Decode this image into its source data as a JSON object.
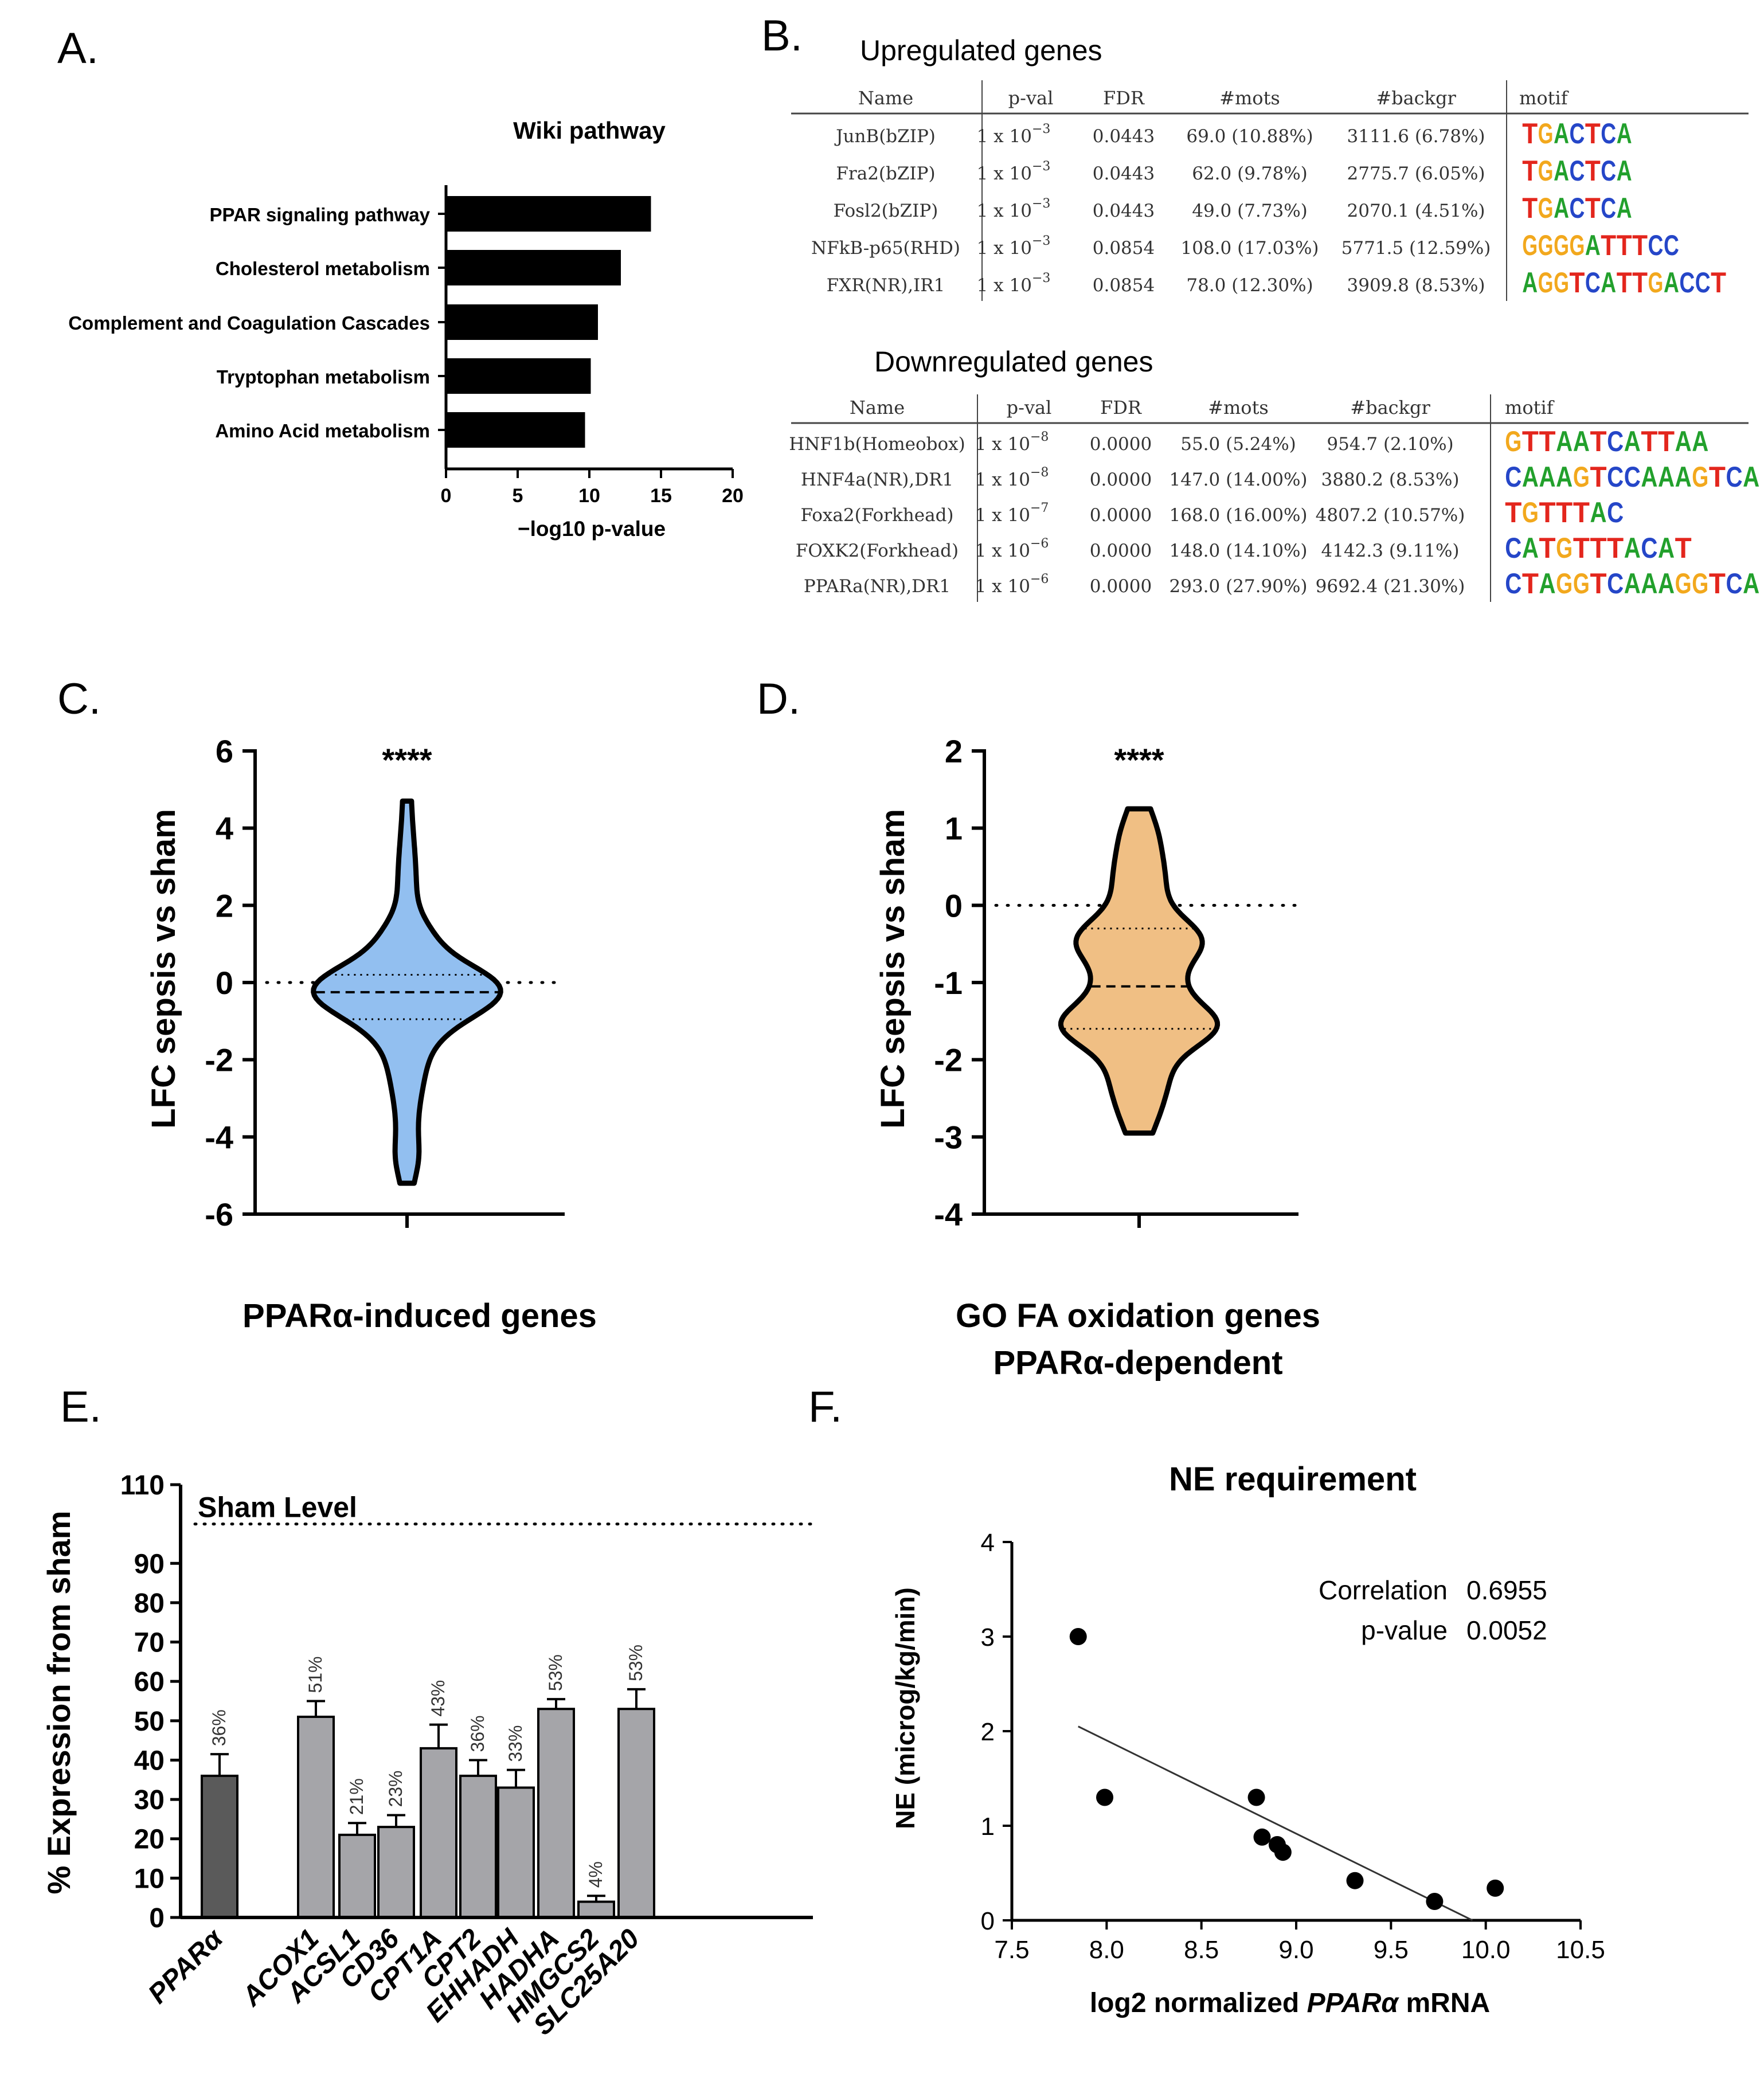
{
  "panel_labels": {
    "a": "A.",
    "b": "B.",
    "c": "C.",
    "d": "D.",
    "e": "E.",
    "f": "F."
  },
  "panel_a": {
    "chart_data": {
      "type": "bar",
      "orientation": "horizontal",
      "title": "Wiki pathway",
      "categories": [
        "PPAR signaling pathway",
        "Cholesterol metabolism",
        "Complement and Coagulation Cascades",
        "Tryptophan metabolism",
        "Amino Acid metabolism"
      ],
      "values": [
        14.3,
        12.2,
        10.6,
        10.1,
        9.7
      ],
      "xlabel": "−log10 p-value",
      "xlim": [
        0,
        20
      ],
      "xticks": [
        "0",
        "5",
        "10",
        "15",
        "20"
      ],
      "bar_color": "#000000"
    }
  },
  "panel_b": {
    "headers": [
      "Name",
      "p-val",
      "FDR",
      "#mots",
      "#backgr",
      "motif"
    ],
    "up": {
      "title": "Upregulated genes",
      "rows": [
        {
          "name": "JunB(bZIP)",
          "pval_base": "1 x 10",
          "pval_exp": "−3",
          "fdr": "0.0443",
          "mots": "69.0 (10.88%)",
          "backgr": "3111.6 (6.78%)",
          "motif": "TGACTCA"
        },
        {
          "name": "Fra2(bZIP)",
          "pval_base": "1 x 10",
          "pval_exp": "−3",
          "fdr": "0.0443",
          "mots": "62.0 (9.78%)",
          "backgr": "2775.7 (6.05%)",
          "motif": "TGACTCA"
        },
        {
          "name": "Fosl2(bZIP)",
          "pval_base": "1 x 10",
          "pval_exp": "−3",
          "fdr": "0.0443",
          "mots": "49.0 (7.73%)",
          "backgr": "2070.1 (4.51%)",
          "motif": "TGACTCA"
        },
        {
          "name": "NFkB-p65(RHD)",
          "pval_base": "1 x 10",
          "pval_exp": "−3",
          "fdr": "0.0854",
          "mots": "108.0 (17.03%)",
          "backgr": "5771.5 (12.59%)",
          "motif": "GGGGATTTCC"
        },
        {
          "name": "FXR(NR),IR1",
          "pval_base": "1 x 10",
          "pval_exp": "−3",
          "fdr": "0.0854",
          "mots": "78.0 (12.30%)",
          "backgr": "3909.8 (8.53%)",
          "motif": "AGGTCATTGACCT"
        }
      ]
    },
    "down": {
      "title": "Downregulated genes",
      "rows": [
        {
          "name": "HNF1b(Homeobox)",
          "pval_base": "1 x 10",
          "pval_exp": "−8",
          "fdr": "0.0000",
          "mots": "55.0 (5.24%)",
          "backgr": "954.7 (2.10%)",
          "motif": "GTTAATCATTAA"
        },
        {
          "name": "HNF4a(NR),DR1",
          "pval_base": "1 x 10",
          "pval_exp": "−8",
          "fdr": "0.0000",
          "mots": "147.0 (14.00%)",
          "backgr": "3880.2 (8.53%)",
          "motif": "CAAAGTCCAAAGTCA"
        },
        {
          "name": "Foxa2(Forkhead)",
          "pval_base": "1 x 10",
          "pval_exp": "−7",
          "fdr": "0.0000",
          "mots": "168.0 (16.00%)",
          "backgr": "4807.2 (10.57%)",
          "motif": "TGTTTAC"
        },
        {
          "name": "FOXK2(Forkhead)",
          "pval_base": "1 x 10",
          "pval_exp": "−6",
          "fdr": "0.0000",
          "mots": "148.0 (14.10%)",
          "backgr": "4142.3 (9.11%)",
          "motif": "CATGTTTACAT"
        },
        {
          "name": "PPARa(NR),DR1",
          "pval_base": "1 x 10",
          "pval_exp": "−6",
          "fdr": "0.0000",
          "mots": "293.0 (27.90%)",
          "backgr": "9692.4 (21.30%)",
          "motif": "CTAGGTCAAAGGTCA"
        }
      ]
    }
  },
  "panel_c": {
    "chart_data": {
      "type": "violin",
      "ylabel": "LFC sepsis vs sham",
      "xlabel": "PPARα-induced genes",
      "ylim": [
        -6,
        6
      ],
      "yticks": [
        "6",
        "4",
        "2",
        "0",
        "-2",
        "-4",
        "-6"
      ],
      "median": -0.25,
      "quartiles": [
        -0.95,
        0.2
      ],
      "range": [
        -5.2,
        4.7
      ],
      "significance": "****",
      "reference_line": 0,
      "fill": "#92bff0"
    }
  },
  "panel_d": {
    "chart_data": {
      "type": "violin",
      "ylabel": "LFC sepsis vs sham",
      "xlabel_lines": [
        "GO FA oxidation genes",
        "PPARα-dependent"
      ],
      "ylim": [
        -4,
        2
      ],
      "yticks": [
        "2",
        "1",
        "0",
        "-1",
        "-2",
        "-3",
        "-4"
      ],
      "median": -1.05,
      "quartiles": [
        -1.6,
        -0.3
      ],
      "range": [
        -2.95,
        1.25
      ],
      "significance": "****",
      "reference_line": 0,
      "fill": "#f0bf84"
    }
  },
  "panel_e": {
    "chart_data": {
      "type": "bar",
      "ylabel": "% Expression from sham",
      "ylim": [
        0,
        110
      ],
      "yticks": [
        "0",
        "10",
        "20",
        "30",
        "40",
        "50",
        "60",
        "70",
        "80",
        "90",
        "110"
      ],
      "reference_label": "Sham Level",
      "reference_value": 100,
      "categories": [
        "PPARα",
        "ACOX1",
        "ACSL1",
        "CD36",
        "CPT1A",
        "CPT2",
        "EHHADH",
        "HADHA",
        "HMGCS2",
        "SLC25A20"
      ],
      "values": [
        36,
        51,
        21,
        23,
        43,
        36,
        33,
        53,
        4,
        53
      ],
      "errors": [
        5.5,
        4,
        3,
        3,
        6,
        4,
        4.5,
        2.5,
        1.5,
        5
      ],
      "labels": [
        "36%",
        "51%",
        "21%",
        "23%",
        "43%",
        "36%",
        "33%",
        "53%",
        "4%",
        "53%"
      ],
      "colors": [
        "#5a5a5a",
        "#a5a5a9",
        "#a5a5a9",
        "#a5a5a9",
        "#a5a5a9",
        "#a5a5a9",
        "#a5a5a9",
        "#a5a5a9",
        "#a5a5a9",
        "#a5a5a9"
      ]
    }
  },
  "panel_f": {
    "chart_data": {
      "type": "scatter",
      "title": "NE requirement",
      "ylabel": "NE (microg/kg/min)",
      "xlabel_prefix": "log2 normalized ",
      "xlabel_italic": "PPARα",
      "xlabel_suffix": " mRNA",
      "xlim": [
        7.5,
        10.5
      ],
      "ylim": [
        0,
        4
      ],
      "xticks": [
        "7.5",
        "8.0",
        "8.5",
        "9.0",
        "9.5",
        "10.0",
        "10.5"
      ],
      "yticks": [
        "0",
        "1",
        "2",
        "3",
        "4"
      ],
      "x": [
        7.85,
        7.99,
        8.79,
        8.82,
        8.9,
        8.93,
        9.31,
        9.73,
        10.05
      ],
      "y": [
        3.0,
        1.3,
        1.3,
        0.88,
        0.8,
        0.72,
        0.42,
        0.2,
        0.34
      ],
      "fit_line": {
        "x": [
          7.85,
          9.93
        ],
        "y": [
          2.05,
          0.0
        ]
      },
      "stats": [
        {
          "label": "Correlation",
          "value": "0.6955"
        },
        {
          "label": "p-value",
          "value": "0.0052"
        }
      ]
    }
  }
}
